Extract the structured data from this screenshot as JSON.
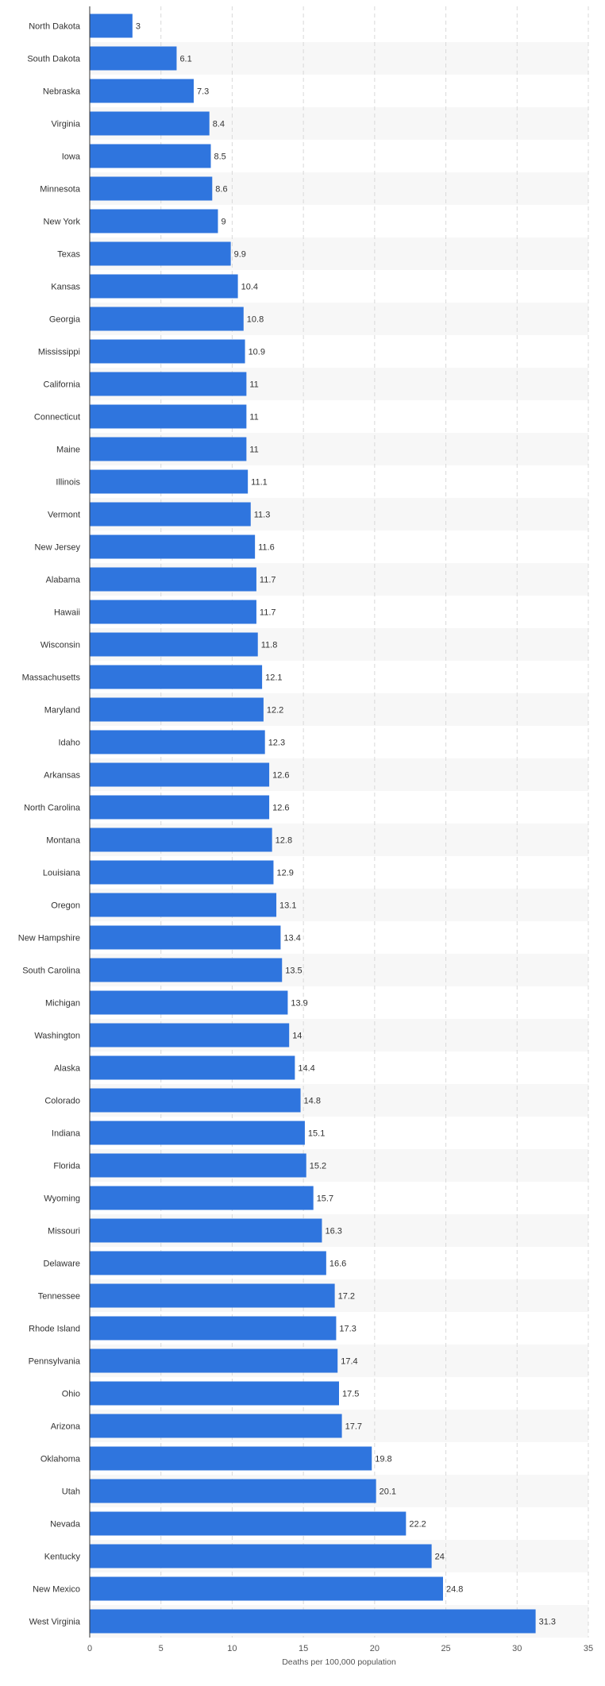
{
  "colors": {
    "bar": "#2f75de",
    "band": "#f7f7f7",
    "grid": "#d9d9d9",
    "axis": "#333333"
  },
  "chart_data": {
    "type": "bar",
    "orientation": "horizontal",
    "categories": [
      "North Dakota",
      "South Dakota",
      "Nebraska",
      "Virginia",
      "Iowa",
      "Minnesota",
      "New York",
      "Texas",
      "Kansas",
      "Georgia",
      "Mississippi",
      "California",
      "Connecticut",
      "Maine",
      "Illinois",
      "Vermont",
      "New Jersey",
      "Alabama",
      "Hawaii",
      "Wisconsin",
      "Massachusetts",
      "Maryland",
      "Idaho",
      "Arkansas",
      "North Carolina",
      "Montana",
      "Louisiana",
      "Oregon",
      "New Hampshire",
      "South Carolina",
      "Michigan",
      "Washington",
      "Alaska",
      "Colorado",
      "Indiana",
      "Florida",
      "Wyoming",
      "Missouri",
      "Delaware",
      "Tennessee",
      "Rhode Island",
      "Pennsylvania",
      "Ohio",
      "Arizona",
      "Oklahoma",
      "Utah",
      "Nevada",
      "Kentucky",
      "New Mexico",
      "West Virginia"
    ],
    "values": [
      3,
      6.1,
      7.3,
      8.4,
      8.5,
      8.6,
      9,
      9.9,
      10.4,
      10.8,
      10.9,
      11,
      11,
      11,
      11.1,
      11.3,
      11.6,
      11.7,
      11.7,
      11.8,
      12.1,
      12.2,
      12.3,
      12.6,
      12.6,
      12.8,
      12.9,
      13.1,
      13.4,
      13.5,
      13.9,
      14,
      14.4,
      14.8,
      15.1,
      15.2,
      15.7,
      16.3,
      16.6,
      17.2,
      17.3,
      17.4,
      17.5,
      17.7,
      19.8,
      20.1,
      22.2,
      24,
      24.8,
      31.3
    ],
    "value_labels": [
      "3",
      "6.1",
      "7.3",
      "8.4",
      "8.5",
      "8.6",
      "9",
      "9.9",
      "10.4",
      "10.8",
      "10.9",
      "11",
      "11",
      "11",
      "11.1",
      "11.3",
      "11.6",
      "11.7",
      "11.7",
      "11.8",
      "12.1",
      "12.2",
      "12.3",
      "12.6",
      "12.6",
      "12.8",
      "12.9",
      "13.1",
      "13.4",
      "13.5",
      "13.9",
      "14",
      "14.4",
      "14.8",
      "15.1",
      "15.2",
      "15.7",
      "16.3",
      "16.6",
      "17.2",
      "17.3",
      "17.4",
      "17.5",
      "17.7",
      "19.8",
      "20.1",
      "22.2",
      "24",
      "24.8",
      "31.3"
    ],
    "xlabel": "Deaths per 100,000 population",
    "xlim": [
      0,
      35
    ],
    "x_ticks": [
      0,
      5,
      10,
      15,
      20,
      25,
      30,
      35
    ],
    "x_tick_labels": [
      "0",
      "5",
      "10",
      "15",
      "20",
      "25",
      "30",
      "35"
    ],
    "grid": true,
    "legend": "none"
  }
}
